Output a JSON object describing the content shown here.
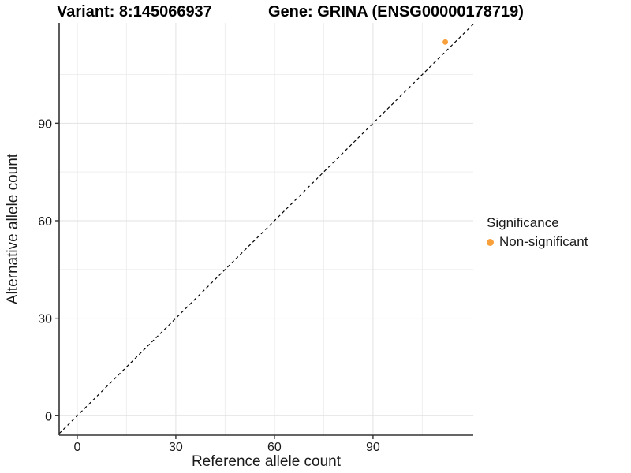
{
  "titles": {
    "variant": "Variant: 8:145066937",
    "gene": "Gene: GRINA (ENSG00000178719)"
  },
  "axes": {
    "x_label": "Reference allele count",
    "y_label": "Alternative allele count"
  },
  "legend": {
    "title": "Significance",
    "items": [
      {
        "label": "Non-significant",
        "color": "#F8A13C"
      }
    ]
  },
  "chart_data": {
    "type": "scatter",
    "title": "Variant: 8:145066937 — Gene: GRINA (ENSG00000178719)",
    "xlabel": "Reference allele count",
    "ylabel": "Alternative allele count",
    "x_ticks": [
      0,
      30,
      60,
      90
    ],
    "y_ticks": [
      0,
      30,
      60,
      90
    ],
    "x_minor_ticks": [
      15,
      45,
      75,
      105
    ],
    "y_minor_ticks": [
      15,
      45,
      75,
      105
    ],
    "xlim": [
      -5.5,
      120.5
    ],
    "ylim": [
      -6,
      120.9
    ],
    "grid": true,
    "legend_position": "right",
    "series": [
      {
        "name": "Non-significant",
        "color": "#F8A13C",
        "points": [
          {
            "x": 112,
            "y": 115
          }
        ]
      }
    ],
    "identity_line": {
      "slope": 1,
      "intercept": 0,
      "style": "dashed",
      "color": "#000000"
    }
  },
  "colors": {
    "background": "#FFFFFF",
    "axis_line": "#333333",
    "grid_major": "#E2E2E2",
    "grid_minor": "#EFEFEF",
    "tick_text": "#1A1A1A",
    "point": "#F8A13C"
  }
}
